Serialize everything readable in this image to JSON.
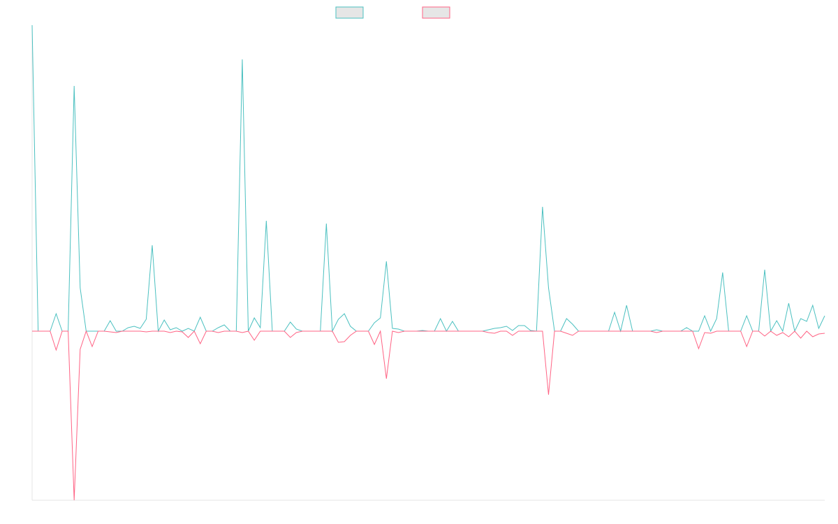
{
  "chart_data": {
    "type": "line",
    "ylim": [
      -242,
      438
    ],
    "series": [
      {
        "color": "#4bc0c0",
        "values": [
          438,
          0,
          0,
          0,
          25,
          0,
          0,
          351,
          62,
          0,
          0,
          0,
          0,
          15,
          0,
          0,
          5,
          7,
          4,
          17,
          123,
          0,
          16,
          2,
          5,
          0,
          4,
          0,
          20,
          0,
          0,
          5,
          9,
          0,
          0,
          389,
          0,
          19,
          5,
          158,
          0,
          0,
          0,
          13,
          3,
          0,
          0,
          0,
          0,
          154,
          0,
          17,
          25,
          7,
          0,
          0,
          0,
          12,
          19,
          100,
          4,
          3,
          0,
          0,
          0,
          1,
          0,
          0,
          18,
          0,
          14,
          0,
          0,
          0,
          0,
          0,
          2,
          4,
          5,
          7,
          1,
          8,
          8,
          1,
          0,
          178,
          62,
          0,
          0,
          18,
          10,
          0,
          0,
          0,
          0,
          0,
          0,
          27,
          0,
          37,
          0,
          0,
          0,
          0,
          2,
          0,
          0,
          0,
          0,
          5,
          0,
          0,
          22,
          0,
          18,
          84,
          0,
          0,
          0,
          22,
          0,
          0,
          88,
          0,
          15,
          0,
          40,
          0,
          18,
          14,
          37,
          4,
          22
        ]
      },
      {
        "color": "#ff6384",
        "values": [
          0,
          0,
          0,
          0,
          -27,
          0,
          0,
          -242,
          -26,
          0,
          -22,
          0,
          0,
          -1,
          -2,
          0,
          0,
          0,
          0,
          -1,
          0,
          0,
          0,
          -2,
          0,
          -1,
          -9,
          0,
          -18,
          0,
          0,
          -2,
          0,
          0,
          0,
          -2,
          0,
          -13,
          0,
          0,
          0,
          0,
          0,
          -9,
          -2,
          0,
          0,
          0,
          0,
          0,
          0,
          -16,
          -15,
          -6,
          0,
          0,
          0,
          -19,
          0,
          -68,
          0,
          -2,
          0,
          0,
          0,
          0,
          0,
          0,
          0,
          0,
          0,
          0,
          0,
          0,
          0,
          0,
          -2,
          -3,
          0,
          0,
          -6,
          0,
          0,
          0,
          0,
          0,
          -91,
          0,
          0,
          -3,
          -6,
          0,
          0,
          0,
          0,
          0,
          0,
          0,
          0,
          0,
          0,
          0,
          0,
          0,
          -2,
          0,
          0,
          0,
          0,
          0,
          0,
          -25,
          -2,
          -3,
          0,
          0,
          0,
          0,
          0,
          -22,
          0,
          0,
          -7,
          0,
          -6,
          -2,
          -8,
          0,
          -10,
          0,
          -8,
          -4,
          -3
        ]
      }
    ]
  }
}
